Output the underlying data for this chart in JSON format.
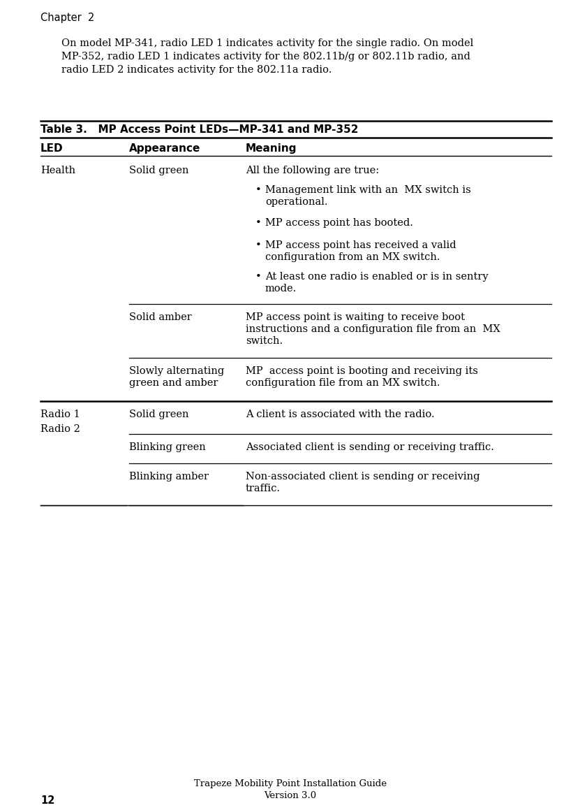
{
  "chapter_header": "Chapter  2",
  "intro_lines": [
    "On model MP-341, radio LED 1 indicates activity for the single radio. On model",
    "MP-352, radio LED 1 indicates activity for the 802.11b/g or 802.11b radio, and",
    "radio LED 2 indicates activity for the 802.11a radio."
  ],
  "table_title": "Table 3.   MP Access Point LEDs—MP-341 and MP-352",
  "col_headers": [
    "LED",
    "Appearance",
    "Meaning"
  ],
  "footer_line1": "Trapeze Mobility Point Installation Guide",
  "footer_line2": "Version 3.0",
  "page_number": "12",
  "bg_color": "#ffffff",
  "text_color": "#000000",
  "body_fs": 10.5,
  "bold_fs": 11.0,
  "chapter_fs": 10.5,
  "footer_fs": 9.5,
  "page_fs": 10.5
}
